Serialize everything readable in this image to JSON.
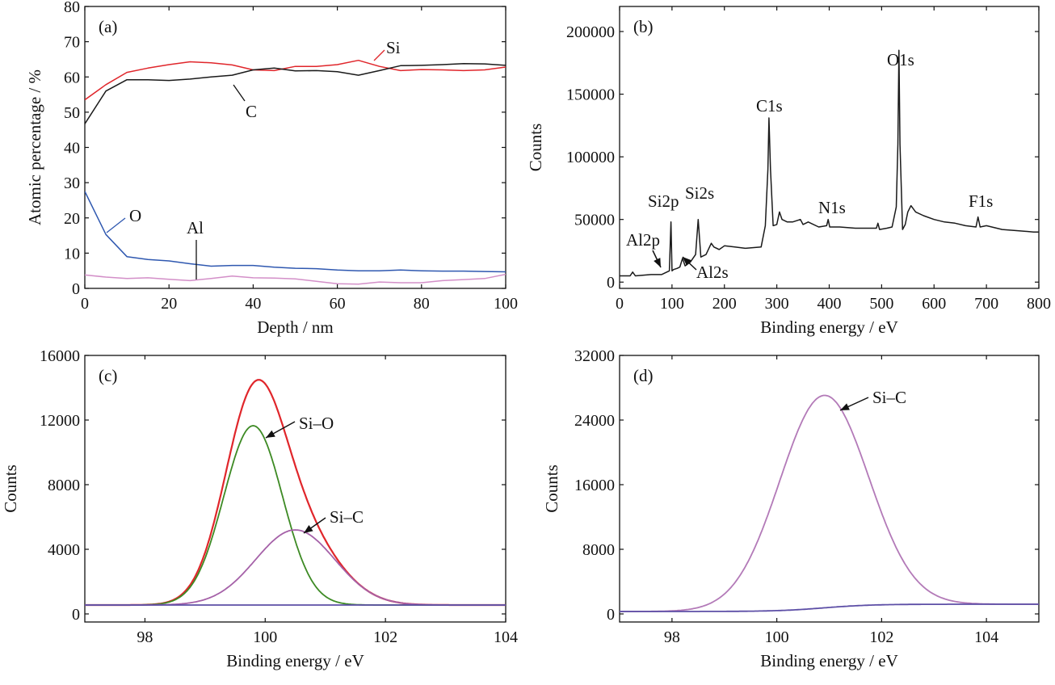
{
  "colors": {
    "black": "#1a1a1a",
    "red": "#e0262b",
    "blue": "#2f58b0",
    "pink": "#d38fc8",
    "green": "#3d8a24",
    "magenta": "#a561a8",
    "purple": "#5d4fa6",
    "lavender": "#b37ab8"
  },
  "chart_data": [
    {
      "type": "line",
      "panel_label": "(a)",
      "xlabel": "Depth / nm",
      "ylabel": "Atomic percentage / %",
      "xlim": [
        0,
        100
      ],
      "ylim": [
        0,
        80
      ],
      "xticks": [
        0,
        20,
        40,
        60,
        80,
        100
      ],
      "yticks": [
        0,
        10,
        20,
        30,
        40,
        50,
        60,
        70,
        80
      ],
      "xtick_labels": [
        "0",
        "20",
        "40",
        "60",
        "80",
        "100"
      ],
      "ytick_labels": [
        "0",
        "10",
        "20",
        "30",
        "40",
        "50",
        "60",
        "70",
        "80"
      ],
      "series": [
        {
          "name": "Si",
          "color_key": "red",
          "x": [
            0,
            5,
            10,
            15,
            20,
            25,
            30,
            35,
            40,
            45,
            50,
            55,
            60,
            65,
            70,
            75,
            80,
            85,
            90,
            95,
            100
          ],
          "y": [
            53.5,
            57.8,
            61.3,
            62.5,
            63.5,
            64.3,
            64.0,
            63.4,
            62.0,
            61.8,
            63.0,
            63.0,
            63.5,
            64.7,
            63.0,
            61.8,
            62.1,
            62.0,
            61.8,
            62.0,
            62.8
          ]
        },
        {
          "name": "C",
          "color_key": "black",
          "x": [
            0,
            5,
            10,
            15,
            20,
            25,
            30,
            35,
            40,
            45,
            50,
            55,
            60,
            65,
            70,
            75,
            80,
            85,
            90,
            95,
            100
          ],
          "y": [
            46.7,
            56.0,
            59.2,
            59.2,
            59.0,
            59.4,
            60.0,
            60.5,
            62.0,
            62.5,
            61.7,
            61.8,
            61.5,
            60.5,
            61.8,
            63.2,
            63.3,
            63.5,
            63.8,
            63.7,
            63.3
          ]
        },
        {
          "name": "O",
          "color_key": "blue",
          "x": [
            0,
            5,
            10,
            15,
            20,
            25,
            30,
            35,
            40,
            45,
            50,
            55,
            60,
            65,
            70,
            75,
            80,
            85,
            90,
            95,
            100
          ],
          "y": [
            27.5,
            15.3,
            9.0,
            8.2,
            7.8,
            7.0,
            6.3,
            6.5,
            6.5,
            6.0,
            5.7,
            5.6,
            5.2,
            5.0,
            5.0,
            5.2,
            5.0,
            4.9,
            4.9,
            4.8,
            4.7
          ]
        },
        {
          "name": "Al",
          "color_key": "pink",
          "x": [
            0,
            5,
            10,
            15,
            20,
            25,
            30,
            35,
            40,
            45,
            50,
            55,
            60,
            65,
            70,
            75,
            80,
            85,
            90,
            95,
            100
          ],
          "y": [
            3.8,
            3.2,
            2.8,
            3.0,
            2.6,
            2.2,
            2.8,
            3.5,
            3.0,
            2.9,
            2.7,
            2.0,
            1.3,
            1.2,
            1.8,
            1.6,
            1.6,
            2.2,
            2.5,
            2.8,
            4.0
          ]
        }
      ],
      "annotations": [
        "Si",
        "C",
        "O",
        "Al"
      ]
    },
    {
      "type": "line",
      "panel_label": "(b)",
      "xlabel": "Binding energy / eV",
      "ylabel": "Counts",
      "xlim": [
        0,
        800
      ],
      "ylim": [
        -5000,
        220000
      ],
      "xticks": [
        0,
        100,
        200,
        300,
        400,
        500,
        600,
        700,
        800
      ],
      "yticks": [
        0,
        50000,
        100000,
        150000,
        200000
      ],
      "xtick_labels": [
        "0",
        "100",
        "200",
        "300",
        "400",
        "500",
        "600",
        "700",
        "800"
      ],
      "ytick_labels": [
        "0",
        "50000",
        "100000",
        "150000",
        "200000"
      ],
      "series": [
        {
          "name": "",
          "color_key": "black",
          "x": [
            0,
            20,
            25,
            30,
            60,
            80,
            95,
            98,
            100,
            103,
            110,
            115,
            120,
            125,
            135,
            145,
            150,
            155,
            165,
            175,
            180,
            190,
            200,
            220,
            240,
            270,
            278,
            283,
            285,
            288,
            293,
            300,
            305,
            310,
            320,
            330,
            345,
            350,
            360,
            380,
            395,
            398,
            401,
            420,
            450,
            490,
            493,
            496,
            510,
            520,
            528,
            531,
            533,
            535,
            540,
            545,
            550,
            556,
            565,
            580,
            600,
            620,
            640,
            660,
            680,
            684,
            688,
            700,
            730,
            760,
            790,
            800
          ],
          "y": [
            5000,
            5000,
            8000,
            5000,
            6000,
            6000,
            9000,
            48000,
            9000,
            10000,
            11000,
            12000,
            19000,
            13000,
            16000,
            22000,
            50000,
            20000,
            22000,
            31000,
            28000,
            26000,
            29000,
            28000,
            27000,
            28000,
            45000,
            90000,
            131000,
            90000,
            45000,
            46000,
            56000,
            50000,
            48000,
            48000,
            50000,
            46000,
            48000,
            44000,
            45000,
            50000,
            44000,
            44000,
            43000,
            43000,
            47000,
            42000,
            43000,
            44000,
            60000,
            110000,
            185000,
            110000,
            42000,
            46000,
            56000,
            61000,
            56000,
            53000,
            50000,
            48000,
            47000,
            45000,
            44000,
            52000,
            44000,
            45000,
            42000,
            41000,
            40000,
            40000
          ]
        }
      ],
      "annotations": [
        "O1s",
        "C1s",
        "Si2p",
        "Si2s",
        "N1s",
        "F1s",
        "Al2p",
        "Al2s"
      ]
    },
    {
      "type": "line",
      "panel_label": "(c)",
      "xlabel": "Binding energy / eV",
      "ylabel": "Counts",
      "xlim": [
        97,
        104
      ],
      "ylim": [
        -500,
        16000
      ],
      "xticks": [
        98,
        100,
        102,
        104
      ],
      "yticks": [
        0,
        4000,
        8000,
        12000,
        16000
      ],
      "xtick_labels": [
        "98",
        "100",
        "102",
        "104"
      ],
      "ytick_labels": [
        "0",
        "4000",
        "8000",
        "12000",
        "16000"
      ],
      "peaks": [
        {
          "name": "Si-O",
          "center": 99.8,
          "height": 11100,
          "fwhm": 1.15
        },
        {
          "name": "Si-C",
          "center": 100.5,
          "height": 4650,
          "fwhm": 1.55
        }
      ],
      "baseline": {
        "start": 550,
        "end": 550
      },
      "series": [
        {
          "name": "envelope",
          "color_key": "red"
        },
        {
          "name": "Si-O",
          "color_key": "green"
        },
        {
          "name": "Si-C",
          "color_key": "magenta"
        },
        {
          "name": "background",
          "color_key": "purple"
        }
      ],
      "annotations": [
        "Si–O",
        "Si–C"
      ]
    },
    {
      "type": "line",
      "panel_label": "(d)",
      "xlabel": "Binding energy / eV",
      "ylabel": "Counts",
      "xlim": [
        97,
        105
      ],
      "ylim": [
        -1000,
        32000
      ],
      "xticks": [
        98,
        100,
        102,
        104
      ],
      "yticks": [
        0,
        8000,
        16000,
        24000,
        32000
      ],
      "xtick_labels": [
        "98",
        "100",
        "102",
        "104"
      ],
      "ytick_labels": [
        "0",
        "8000",
        "16000",
        "24000",
        "32000"
      ],
      "peaks": [
        {
          "name": "Si-C",
          "center": 100.9,
          "height": 26300,
          "fwhm": 2.0
        }
      ],
      "baseline": {
        "start": 300,
        "end": 1200
      },
      "series": [
        {
          "name": "Si-C",
          "color_key": "lavender"
        },
        {
          "name": "background",
          "color_key": "purple"
        }
      ],
      "annotations": [
        "Si–C"
      ]
    }
  ]
}
